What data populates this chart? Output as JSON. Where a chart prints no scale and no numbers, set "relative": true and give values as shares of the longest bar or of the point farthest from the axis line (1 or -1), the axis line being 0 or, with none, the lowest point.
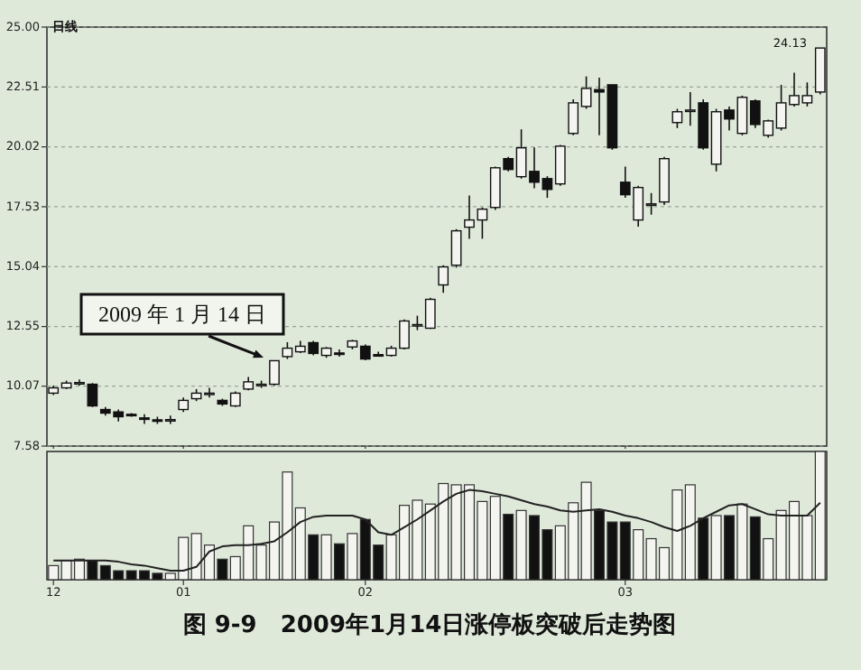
{
  "chart_data": [
    {
      "type": "candlestick",
      "title": "日线",
      "categories": [
        "12",
        null,
        null,
        null,
        null,
        null,
        null,
        null,
        null,
        null,
        "01",
        null,
        null,
        null,
        null,
        null,
        null,
        null,
        null,
        null,
        null,
        null,
        null,
        null,
        "02",
        null,
        null,
        null,
        null,
        null,
        null,
        null,
        null,
        null,
        null,
        null,
        null,
        null,
        null,
        null,
        null,
        null,
        null,
        null,
        "03",
        null,
        null,
        null,
        null,
        null,
        null,
        null,
        null,
        null,
        null,
        null,
        null,
        null,
        null,
        null
      ],
      "ohlc": [
        [
          9.78,
          10.1,
          9.7,
          10.0
        ],
        [
          10.0,
          10.3,
          9.95,
          10.2
        ],
        [
          10.2,
          10.35,
          10.1,
          10.22
        ],
        [
          10.15,
          10.2,
          9.2,
          9.25
        ],
        [
          9.1,
          9.2,
          8.85,
          8.95
        ],
        [
          9.0,
          9.1,
          8.6,
          8.8
        ],
        [
          8.9,
          8.95,
          8.8,
          8.88
        ],
        [
          8.75,
          8.9,
          8.5,
          8.72
        ],
        [
          8.67,
          8.8,
          8.5,
          8.65
        ],
        [
          8.65,
          8.85,
          8.5,
          8.68
        ],
        [
          9.1,
          9.6,
          9.0,
          9.48
        ],
        [
          9.55,
          9.95,
          9.45,
          9.78
        ],
        [
          9.75,
          10.0,
          9.6,
          9.78
        ],
        [
          9.48,
          9.55,
          9.25,
          9.33
        ],
        [
          9.25,
          9.85,
          9.2,
          9.78
        ],
        [
          9.95,
          10.45,
          9.9,
          10.25
        ],
        [
          10.12,
          10.3,
          10.0,
          10.15
        ],
        [
          10.15,
          11.13,
          10.1,
          11.13
        ],
        [
          11.3,
          11.9,
          11.2,
          11.65
        ],
        [
          11.5,
          11.95,
          11.45,
          11.73
        ],
        [
          11.88,
          11.95,
          11.35,
          11.43
        ],
        [
          11.35,
          11.7,
          11.25,
          11.65
        ],
        [
          11.45,
          11.6,
          11.3,
          11.43
        ],
        [
          11.7,
          12.0,
          11.6,
          11.95
        ],
        [
          11.73,
          11.8,
          11.15,
          11.2
        ],
        [
          11.38,
          11.5,
          11.3,
          11.35
        ],
        [
          11.35,
          11.75,
          11.3,
          11.65
        ],
        [
          11.65,
          12.85,
          11.6,
          12.78
        ],
        [
          12.6,
          13.0,
          12.4,
          12.63
        ],
        [
          12.48,
          13.75,
          12.45,
          13.68
        ],
        [
          14.28,
          15.1,
          13.95,
          15.03
        ],
        [
          15.1,
          16.6,
          15.0,
          16.53
        ],
        [
          16.68,
          18.0,
          16.2,
          16.98
        ],
        [
          16.98,
          17.5,
          16.2,
          17.43
        ],
        [
          17.5,
          19.2,
          17.4,
          19.15
        ],
        [
          19.53,
          19.6,
          19.0,
          19.08
        ],
        [
          18.78,
          20.75,
          18.7,
          19.98
        ],
        [
          19.0,
          20.0,
          18.3,
          18.55
        ],
        [
          18.7,
          18.8,
          17.9,
          18.25
        ],
        [
          18.48,
          20.1,
          18.4,
          20.05
        ],
        [
          20.58,
          22.0,
          20.5,
          21.85
        ],
        [
          21.7,
          22.95,
          21.6,
          22.45
        ],
        [
          22.4,
          22.9,
          20.5,
          22.3
        ],
        [
          22.6,
          22.6,
          19.9,
          19.98
        ],
        [
          18.55,
          19.2,
          17.9,
          18.03
        ],
        [
          16.98,
          18.4,
          16.7,
          18.33
        ],
        [
          17.6,
          18.1,
          17.2,
          17.65
        ],
        [
          17.73,
          19.6,
          17.6,
          19.53
        ],
        [
          21.03,
          21.6,
          20.8,
          21.48
        ],
        [
          21.5,
          22.3,
          20.9,
          21.55
        ],
        [
          21.85,
          22.0,
          19.9,
          19.98
        ],
        [
          19.3,
          21.6,
          19.0,
          21.48
        ],
        [
          21.55,
          21.7,
          20.7,
          21.18
        ],
        [
          20.58,
          22.15,
          20.5,
          22.08
        ],
        [
          21.93,
          22.0,
          20.8,
          20.95
        ],
        [
          20.5,
          21.15,
          20.4,
          21.1
        ],
        [
          20.8,
          22.6,
          20.7,
          21.85
        ],
        [
          21.78,
          23.1,
          21.7,
          22.15
        ],
        [
          21.85,
          22.7,
          21.7,
          22.15
        ],
        [
          22.3,
          24.13,
          22.2,
          24.13
        ]
      ],
      "ylim": [
        7.58,
        25.0
      ],
      "yticks": [
        7.58,
        10.07,
        12.55,
        15.04,
        17.53,
        20.02,
        22.51,
        {
          "value": 25.0,
          "label": "25.00"
        }
      ],
      "grid": "y",
      "tick_labels": "y",
      "annotations": [
        "2009 年 1 月 14 日",
        "24.13"
      ]
    },
    {
      "type": "bar",
      "relative": true,
      "tick_labels": "x",
      "categories": [
        "12",
        null,
        null,
        null,
        null,
        null,
        null,
        null,
        null,
        null,
        "01",
        null,
        null,
        null,
        null,
        null,
        null,
        null,
        null,
        null,
        null,
        null,
        null,
        null,
        "02",
        null,
        null,
        null,
        null,
        null,
        null,
        null,
        null,
        null,
        null,
        null,
        null,
        null,
        null,
        null,
        null,
        null,
        null,
        null,
        "03",
        null,
        null,
        null,
        null,
        null,
        null,
        null,
        null,
        null,
        null,
        null,
        null,
        null,
        null,
        null
      ],
      "series": [
        {
          "values": [
            0.11,
            0.15,
            0.16,
            0.15,
            0.11,
            0.07,
            0.07,
            0.07,
            0.05,
            0.05,
            0.33,
            0.36,
            0.27,
            0.16,
            0.18,
            0.42,
            0.27,
            0.45,
            0.84,
            0.56,
            0.35,
            0.35,
            0.28,
            0.36,
            0.47,
            0.27,
            0.35,
            0.58,
            0.62,
            0.59,
            0.75,
            0.74,
            0.74,
            0.61,
            0.65,
            0.51,
            0.54,
            0.5,
            0.39,
            0.42,
            0.6,
            0.76,
            0.54,
            0.45,
            0.45,
            0.39,
            0.32,
            0.25,
            0.7,
            0.74,
            0.48,
            0.5,
            0.5,
            0.59,
            0.49,
            0.32,
            0.54,
            0.61,
            0.5,
            1
          ],
          "colors": [
            "#f4f4f0",
            "#f4f4f0",
            "#f4f4f0",
            "#111111",
            "#111111",
            "#111111",
            "#111111",
            "#111111",
            "#111111",
            "#f4f4f0",
            "#f4f4f0",
            "#f4f4f0",
            "#f4f4f0",
            "#111111",
            "#f4f4f0",
            "#f4f4f0",
            "#f4f4f0",
            "#f4f4f0",
            "#f4f4f0",
            "#f4f4f0",
            "#111111",
            "#f4f4f0",
            "#111111",
            "#f4f4f0",
            "#111111",
            "#111111",
            "#f4f4f0",
            "#f4f4f0",
            "#f4f4f0",
            "#f4f4f0",
            "#f4f4f0",
            "#f4f4f0",
            "#f4f4f0",
            "#f4f4f0",
            "#f4f4f0",
            "#111111",
            "#f4f4f0",
            "#111111",
            "#111111",
            "#f4f4f0",
            "#f4f4f0",
            "#f4f4f0",
            "#111111",
            "#111111",
            "#111111",
            "#f4f4f0",
            "#f4f4f0",
            "#f4f4f0",
            "#f4f4f0",
            "#f4f4f0",
            "#111111",
            "#f4f4f0",
            "#111111",
            "#f4f4f0",
            "#111111",
            "#f4f4f0",
            "#f4f4f0",
            "#f4f4f0",
            "#f4f4f0",
            "#f4f4f0"
          ]
        },
        {
          "type": "line",
          "color": "#222222",
          "values": [
            0.15,
            0.15,
            0.15,
            0.15,
            0.15,
            0.14,
            0.12,
            0.11,
            0.09,
            0.07,
            0.07,
            0.1,
            0.22,
            0.26,
            0.27,
            0.27,
            0.28,
            0.3,
            0.37,
            0.45,
            0.49,
            0.5,
            0.5,
            0.5,
            0.47,
            0.37,
            0.35,
            0.41,
            0.47,
            0.54,
            0.61,
            0.67,
            0.7,
            0.69,
            0.67,
            0.65,
            0.62,
            0.59,
            0.57,
            0.54,
            0.53,
            0.54,
            0.55,
            0.53,
            0.5,
            0.48,
            0.45,
            0.41,
            0.38,
            0.42,
            0.48,
            0.53,
            0.58,
            0.59,
            0.55,
            0.51,
            0.5,
            0.5,
            0.5,
            0.6
          ]
        }
      ],
      "annotations": [
        "图 9-9　2009年1月14日涨停板突破后走势图"
      ]
    }
  ]
}
